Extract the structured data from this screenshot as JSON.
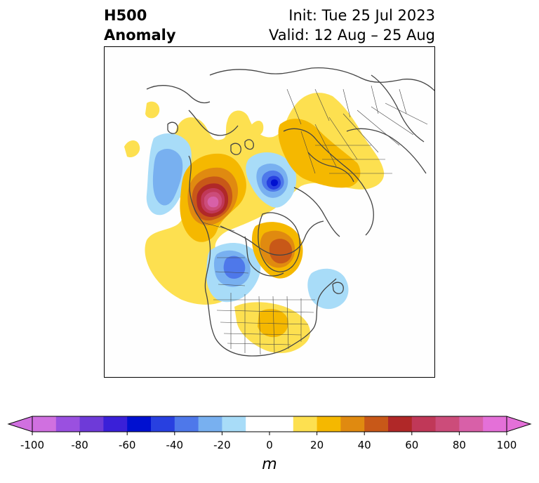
{
  "title": {
    "left_line1": "H500",
    "left_line2": "Anomaly",
    "right_line1": "Init: Tue 25 Jul 2023",
    "right_line2": "Valid: 12 Aug – 25 Aug"
  },
  "colorbar": {
    "unit": "m",
    "ticks": [
      "-100",
      "-80",
      "-60",
      "-40",
      "-20",
      "0",
      "20",
      "40",
      "60",
      "80",
      "100"
    ],
    "tick_values": [
      -100,
      -80,
      -60,
      -40,
      -20,
      0,
      20,
      40,
      60,
      80,
      100
    ],
    "levels": [
      -100,
      -90,
      -80,
      -70,
      -60,
      -50,
      -40,
      -30,
      -20,
      -10,
      10,
      20,
      30,
      40,
      50,
      60,
      70,
      80,
      90,
      100
    ],
    "colors": [
      "#d070e0",
      "#9a50e0",
      "#6e3ad8",
      "#3a20d8",
      "#0010d0",
      "#2840e0",
      "#4e78ea",
      "#78b0f0",
      "#a8dcf8",
      "#ffffff",
      "#fde050",
      "#f5b800",
      "#e08a10",
      "#c85818",
      "#b02828",
      "#c03858",
      "#cc4c7a",
      "#d860a8",
      "#e470d8"
    ],
    "under_color": "#d070e0",
    "over_color": "#e470d8"
  },
  "map": {
    "projection": "north-polar-stereographic",
    "colors": {
      "land_lines": "#444444",
      "neg10": "#a8dcf8",
      "neg20": "#78b0f0",
      "neg30": "#4e78ea",
      "neg40": "#2840e0",
      "neg50": "#0010d0",
      "pos10": "#fde050",
      "pos20": "#f5b800",
      "pos30": "#e08a10",
      "pos40": "#c85818",
      "pos50": "#b02828",
      "pos60": "#c03858",
      "pos70": "#cc4c7a",
      "pos80": "#d860a8"
    }
  }
}
